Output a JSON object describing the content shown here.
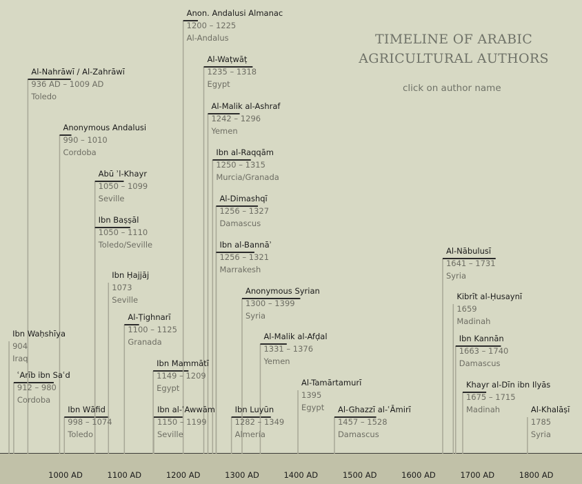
{
  "header": {
    "title_line1": "TIMELINE OF ARABIC",
    "title_line2": "AGRICULTURAL AUTHORS",
    "subtitle": "click on author name"
  },
  "colors": {
    "background": "#d7d9c4",
    "axis_band": "#c1c1a8",
    "vline": "#a7a796",
    "bar": "#2a2a2a"
  },
  "chart_data": {
    "type": "timeline",
    "xlim": [
      900,
      1800
    ],
    "xticks": [
      "1000 AD",
      "1100 AD",
      "1200 AD",
      "1300 AD",
      "1400 AD",
      "1500 AD",
      "1600 AD",
      "1700 AD",
      "1800 AD"
    ],
    "tick_values": [
      1000,
      1100,
      1200,
      1300,
      1400,
      1500,
      1600,
      1700,
      1800
    ],
    "authors": [
      {
        "name": "Ibn Waḥshīya",
        "dates": "904",
        "place": "Iraq",
        "start": 904,
        "end": 904
      },
      {
        "name": "ʿArīb ibn Saʿd",
        "dates": "912 – 980",
        "place": "Cordoba",
        "start": 912,
        "end": 980
      },
      {
        "name": "Al-Nahrāwī / Al-Zahrāwī",
        "dates": "936 AD – 1009 AD",
        "place": "Toledo",
        "start": 936,
        "end": 1009
      },
      {
        "name": "Anonymous Andalusi",
        "dates": "990 – 1010",
        "place": "Cordoba",
        "start": 990,
        "end": 1010
      },
      {
        "name": "Ibn Wāfid",
        "dates": "998 – 1074",
        "place": "Toledo",
        "start": 998,
        "end": 1074
      },
      {
        "name": "Abū ʾl-Khayr",
        "dates": "1050 – 1099",
        "place": "Seville",
        "start": 1050,
        "end": 1099
      },
      {
        "name": "Ibn Baṣṣāl",
        "dates": "1050 – 1110",
        "place": "Toledo/Seville",
        "start": 1050,
        "end": 1110
      },
      {
        "name": "Ibn Ḥajjāj",
        "dates": "1073",
        "place": "Seville",
        "start": 1073,
        "end": 1073
      },
      {
        "name": "Al-Ṭighnarī",
        "dates": "1100 – 1125",
        "place": "Granada",
        "start": 1100,
        "end": 1125
      },
      {
        "name": "Ibn Mammātī",
        "dates": "1149 – 1209",
        "place": "Egypt",
        "start": 1149,
        "end": 1209
      },
      {
        "name": "Ibn al-ʿAwwām",
        "dates": "1150 – 1199",
        "place": "Seville",
        "start": 1150,
        "end": 1199
      },
      {
        "name": "Anon. Andalusi Almanac",
        "dates": "1200 – 1225",
        "place": "Al-Andalus",
        "start": 1200,
        "end": 1225
      },
      {
        "name": "Al-Waṭwāṭ",
        "dates": "1235 – 1318",
        "place": "Egypt",
        "start": 1235,
        "end": 1318
      },
      {
        "name": "Al-Malik al-Ashraf",
        "dates": "1242 – 1296",
        "place": "Yemen",
        "start": 1242,
        "end": 1296
      },
      {
        "name": "Ibn al-Raqqām",
        "dates": "1250 – 1315",
        "place": "Murcia/Granada",
        "start": 1250,
        "end": 1315
      },
      {
        "name": "Al-Dimashqī",
        "dates": "1256 – 1327",
        "place": "Damascus",
        "start": 1256,
        "end": 1327
      },
      {
        "name": "Ibn al-Bannāʾ",
        "dates": "1256 – 1321",
        "place": "Marrakesh",
        "start": 1256,
        "end": 1321
      },
      {
        "name": "Ibn Luyūn",
        "dates": "1282 – 1349",
        "place": "Almería",
        "start": 1282,
        "end": 1349
      },
      {
        "name": "Anonymous Syrian",
        "dates": "1300 – 1399",
        "place": "Syria",
        "start": 1300,
        "end": 1399
      },
      {
        "name": "Al-Malik al-Afḍal",
        "dates": "1331 – 1376",
        "place": "Yemen",
        "start": 1331,
        "end": 1376
      },
      {
        "name": "Al-Tamārtamurī",
        "dates": "1395",
        "place": "Egypt",
        "start": 1395,
        "end": 1395
      },
      {
        "name": "Al-Ghazzī al-ʿĀmirī",
        "dates": "1457 – 1528",
        "place": "Damascus",
        "start": 1457,
        "end": 1528
      },
      {
        "name": "Al-Nābulusī",
        "dates": "1641 – 1731",
        "place": "Syria",
        "start": 1641,
        "end": 1731
      },
      {
        "name": "Kibrīt al-Ḥusaynī",
        "dates": "1659",
        "place": "Madinah",
        "start": 1659,
        "end": 1659
      },
      {
        "name": "Ibn Kannān",
        "dates": "1663 – 1740",
        "place": "Damascus",
        "start": 1663,
        "end": 1740
      },
      {
        "name": "Khayr al-Dīn ibn Ilyās",
        "dates": "1675 – 1715",
        "place": "Madinah",
        "start": 1675,
        "end": 1715
      },
      {
        "name": "Al-Khalāṣī",
        "dates": "1785",
        "place": "Syria",
        "start": 1785,
        "end": 1785
      }
    ]
  }
}
